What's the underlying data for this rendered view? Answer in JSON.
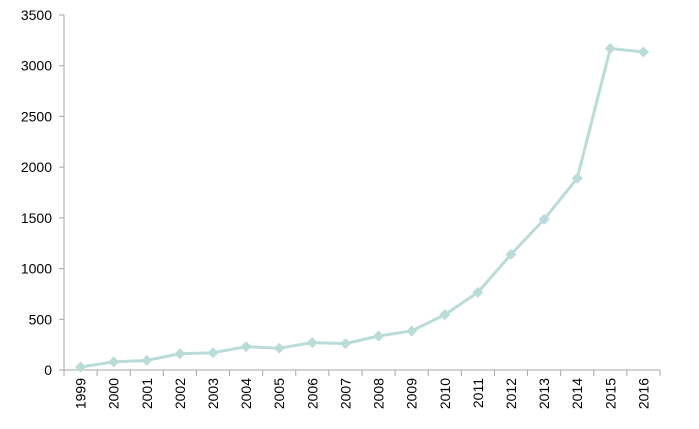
{
  "chart_data": {
    "type": "line",
    "x": [
      "1999",
      "2000",
      "2001",
      "2002",
      "2003",
      "2004",
      "2005",
      "2006",
      "2007",
      "2008",
      "2009",
      "2010",
      "2011",
      "2012",
      "2013",
      "2014",
      "2015",
      "2016"
    ],
    "series": [
      {
        "values": [
          30,
          80,
          95,
          160,
          170,
          230,
          215,
          270,
          260,
          335,
          385,
          545,
          765,
          1140,
          1485,
          1890,
          3170,
          3135
        ],
        "color": "#b9dcd8",
        "marker": "diamond"
      }
    ],
    "yticks": [
      "0",
      "500",
      "1000",
      "1500",
      "2000",
      "2500",
      "3000",
      "3500"
    ],
    "ylim": [
      0,
      3500
    ],
    "title": "",
    "xlabel": "",
    "ylabel": "",
    "grid": false,
    "legend": "none"
  }
}
